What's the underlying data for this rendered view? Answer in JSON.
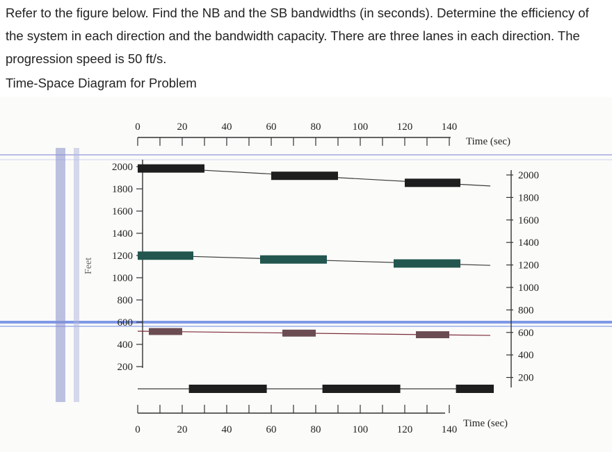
{
  "problem": {
    "text": "Refer to the figure below. Find the NB and the SB bandwidths (in seconds). Determine the efficiency of the system in each direction and the bandwidth capacity. There are three lanes in each direction. The progression speed is 50 ft/s."
  },
  "caption": "Time-Space Diagram for Problem",
  "diagram": {
    "time_axis_title": "Time (sec)",
    "y_axis_title": "Feet",
    "time_ticks": [
      "0",
      "20",
      "40",
      "60",
      "80",
      "100",
      "120",
      "140"
    ],
    "distance_ticks": [
      "2000",
      "1800",
      "1600",
      "1400",
      "1200",
      "1000",
      "800",
      "600",
      "400",
      "200"
    ],
    "colors": {
      "red_band": "#1e1e1e",
      "teal_band": "#22564e",
      "mauve_band": "#6b4c52",
      "axis": "#333333"
    },
    "signals": [
      {
        "distance_ft": 2000,
        "red_intervals": [
          [
            0,
            30
          ],
          [
            60,
            90
          ],
          [
            120,
            145
          ]
        ]
      },
      {
        "distance_ft": 1200,
        "red_intervals": [
          [
            0,
            25
          ],
          [
            55,
            85
          ],
          [
            115,
            145
          ]
        ]
      },
      {
        "distance_ft": 500,
        "red_intervals": [
          [
            5,
            20
          ],
          [
            65,
            80
          ],
          [
            125,
            140
          ]
        ]
      },
      {
        "distance_ft": 0,
        "red_intervals": [
          [
            23,
            58
          ],
          [
            83,
            118
          ],
          [
            143,
            160
          ]
        ]
      }
    ]
  }
}
